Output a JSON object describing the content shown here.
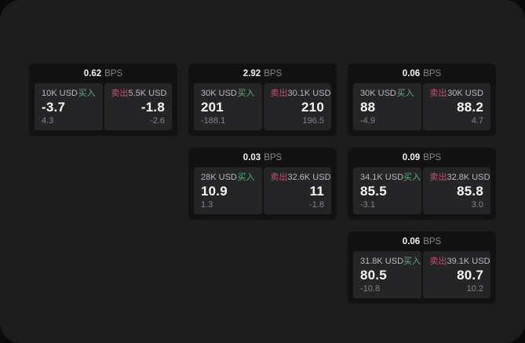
{
  "labels": {
    "bps_unit": "BPS",
    "buy": "买入",
    "sell": "卖出"
  },
  "colors": {
    "buy": "#53b377",
    "sell": "#c2506b",
    "window_bg": "#1c1c1d",
    "card_bg": "#121213",
    "panel_bg": "#252527"
  },
  "cards": [
    {
      "bps": "0.62",
      "buy": {
        "notional": "10K USD",
        "price": "-3.7",
        "delta": "4.3"
      },
      "sell": {
        "notional": "5.5K USD",
        "price": "-1.8",
        "delta": "-2.6"
      }
    },
    {
      "bps": "2.92",
      "buy": {
        "notional": "30K USD",
        "price": "201",
        "delta": "-188.1"
      },
      "sell": {
        "notional": "30.1K USD",
        "price": "210",
        "delta": "196.5"
      }
    },
    {
      "bps": "0.06",
      "buy": {
        "notional": "30K USD",
        "price": "88",
        "delta": "-4.9"
      },
      "sell": {
        "notional": "30K USD",
        "price": "88.2",
        "delta": "4.7"
      }
    },
    {
      "bps": "0.03",
      "buy": {
        "notional": "28K USD",
        "price": "10.9",
        "delta": "1.3"
      },
      "sell": {
        "notional": "32.6K USD",
        "price": "11",
        "delta": "-1.8"
      }
    },
    {
      "bps": "0.09",
      "buy": {
        "notional": "34.1K USD",
        "price": "85.5",
        "delta": "-3.1"
      },
      "sell": {
        "notional": "32.8K USD",
        "price": "85.8",
        "delta": "3.0"
      }
    },
    {
      "bps": "0.06",
      "buy": {
        "notional": "31.8K USD",
        "price": "80.5",
        "delta": "-10.8"
      },
      "sell": {
        "notional": "39.1K USD",
        "price": "80.7",
        "delta": "10.2"
      }
    }
  ]
}
